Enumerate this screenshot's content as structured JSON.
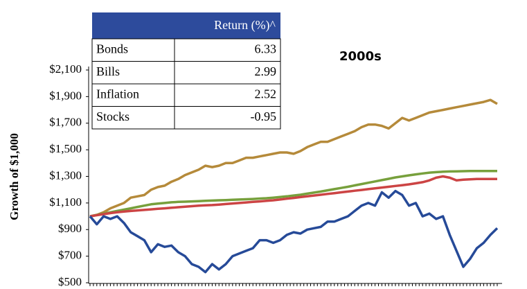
{
  "chart_data": {
    "type": "line",
    "title": "2000s",
    "y_label": "Growth of $1,000",
    "ylim": [
      500,
      2100
    ],
    "yticks": [
      {
        "value": 500,
        "label": "$500"
      },
      {
        "value": 700,
        "label": "$700"
      },
      {
        "value": 900,
        "label": "$900"
      },
      {
        "value": 1100,
        "label": "$1,100"
      },
      {
        "value": 1300,
        "label": "$1,300"
      },
      {
        "value": 1500,
        "label": "$1,500"
      },
      {
        "value": 1700,
        "label": "$1,700"
      },
      {
        "value": 1900,
        "label": "$1,900"
      },
      {
        "value": 2100,
        "label": "$2,100"
      }
    ],
    "series": [
      {
        "name": "Bonds",
        "color": "#b58a3a",
        "values": [
          1000,
          1010,
          1030,
          1060,
          1080,
          1100,
          1140,
          1150,
          1160,
          1200,
          1220,
          1230,
          1260,
          1280,
          1310,
          1330,
          1350,
          1380,
          1370,
          1380,
          1400,
          1400,
          1420,
          1440,
          1440,
          1450,
          1460,
          1470,
          1480,
          1480,
          1470,
          1490,
          1520,
          1540,
          1560,
          1560,
          1580,
          1600,
          1620,
          1640,
          1670,
          1690,
          1690,
          1680,
          1660,
          1700,
          1740,
          1720,
          1740,
          1760,
          1780,
          1790,
          1800,
          1810,
          1820,
          1830,
          1840,
          1850,
          1860,
          1875,
          1845
        ]
      },
      {
        "name": "Bills",
        "color": "#77a03c",
        "values": [
          1000,
          1010,
          1020,
          1030,
          1040,
          1050,
          1060,
          1070,
          1080,
          1090,
          1095,
          1100,
          1105,
          1108,
          1110,
          1112,
          1114,
          1116,
          1118,
          1120,
          1122,
          1124,
          1126,
          1128,
          1130,
          1133,
          1136,
          1140,
          1145,
          1150,
          1156,
          1162,
          1170,
          1178,
          1186,
          1195,
          1204,
          1213,
          1222,
          1232,
          1242,
          1252,
          1262,
          1272,
          1282,
          1292,
          1300,
          1308,
          1315,
          1322,
          1328,
          1332,
          1335,
          1337,
          1338,
          1339,
          1340,
          1340,
          1340,
          1340,
          1340
        ]
      },
      {
        "name": "Inflation",
        "color": "#cc4444",
        "values": [
          1000,
          1008,
          1016,
          1024,
          1030,
          1036,
          1040,
          1044,
          1048,
          1052,
          1056,
          1060,
          1064,
          1068,
          1072,
          1076,
          1080,
          1082,
          1084,
          1088,
          1092,
          1096,
          1100,
          1104,
          1108,
          1112,
          1116,
          1120,
          1126,
          1132,
          1138,
          1144,
          1150,
          1156,
          1162,
          1168,
          1174,
          1180,
          1186,
          1192,
          1198,
          1204,
          1210,
          1216,
          1222,
          1228,
          1234,
          1240,
          1248,
          1256,
          1270,
          1290,
          1300,
          1290,
          1270,
          1275,
          1278,
          1280,
          1280,
          1280,
          1280
        ]
      },
      {
        "name": "Stocks",
        "color": "#264a98",
        "values": [
          1000,
          940,
          1000,
          980,
          1000,
          950,
          880,
          850,
          820,
          730,
          790,
          770,
          780,
          730,
          700,
          640,
          620,
          580,
          640,
          600,
          640,
          700,
          720,
          740,
          760,
          820,
          820,
          800,
          820,
          860,
          880,
          870,
          900,
          910,
          920,
          960,
          960,
          980,
          1000,
          1040,
          1080,
          1100,
          1080,
          1180,
          1140,
          1190,
          1160,
          1080,
          1100,
          1000,
          1020,
          980,
          1000,
          860,
          740,
          620,
          680,
          760,
          800,
          860,
          910
        ]
      }
    ]
  },
  "table": {
    "header": "Return (%)^",
    "rows": [
      [
        "Bonds",
        "6.33"
      ],
      [
        "Bills",
        "2.99"
      ],
      [
        "Inflation",
        "2.52"
      ],
      [
        "Stocks",
        "-0.95"
      ]
    ]
  }
}
